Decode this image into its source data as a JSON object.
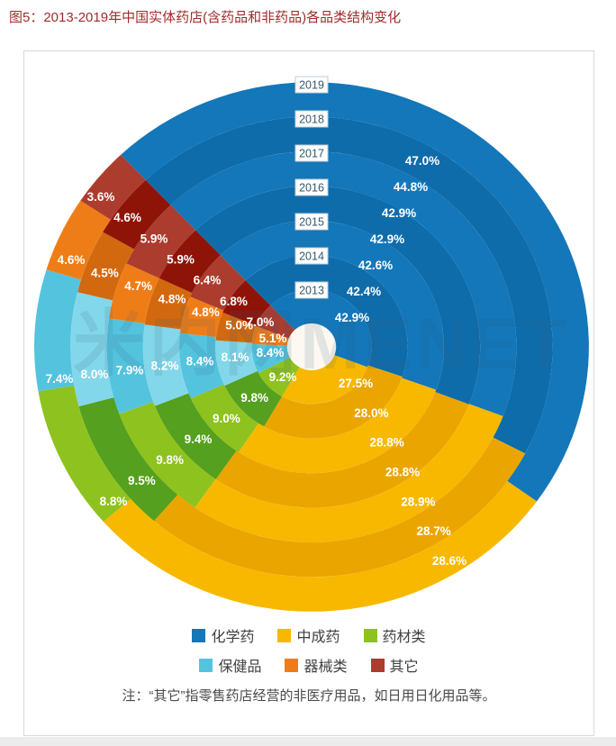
{
  "page": {
    "title": "图5：2013-2019年中国实体药店(含药品和非药品)各品类结构变化",
    "note": "注：“其它”指零售药店经营的非医疗用品，如日用日化用品等。",
    "watermark": "米内网MENET"
  },
  "chart_data": {
    "type": "pie",
    "subtype": "nested-concentric-rings",
    "title": "2013-2019年中国实体药店(含药品和非药品)各品类结构变化",
    "unit": "%",
    "rings_inner_to_outer": [
      "2013",
      "2014",
      "2015",
      "2016",
      "2017",
      "2018",
      "2019"
    ],
    "start_angle_deg_from_top": -43.5,
    "direction": "clockwise",
    "legend_position": "bottom",
    "categories": [
      {
        "name": "化学药",
        "color": "#1377b9",
        "color_alt": "#0f6cab",
        "values": [
          42.9,
          42.4,
          42.6,
          42.9,
          42.9,
          44.8,
          47.0
        ]
      },
      {
        "name": "中成药",
        "color": "#f8b800",
        "color_alt": "#eba500",
        "values": [
          27.5,
          28.0,
          28.8,
          28.8,
          28.9,
          28.7,
          28.6
        ]
      },
      {
        "name": "药材类",
        "color": "#8ec21f",
        "color_alt": "#55a01e",
        "values": [
          9.2,
          9.8,
          9.0,
          9.4,
          9.8,
          9.5,
          8.8
        ]
      },
      {
        "name": "保健品",
        "color": "#54c3de",
        "color_alt": "#83d7ea",
        "values": [
          8.4,
          8.1,
          8.4,
          8.2,
          7.9,
          8.0,
          7.4
        ]
      },
      {
        "name": "器械类",
        "color": "#ef7d17",
        "color_alt": "#d2690f",
        "values": [
          5.1,
          5.0,
          4.8,
          4.8,
          4.7,
          4.5,
          4.6
        ]
      },
      {
        "name": "其它",
        "color": "#ac3c2e",
        "color_alt": "#8e1408",
        "values": [
          7.0,
          6.8,
          6.4,
          5.9,
          5.9,
          4.6,
          3.6
        ]
      }
    ],
    "hole_color": "#fdf8f1",
    "year_label_text_color": "#33596e",
    "percent_label_color": "#ffffff"
  }
}
